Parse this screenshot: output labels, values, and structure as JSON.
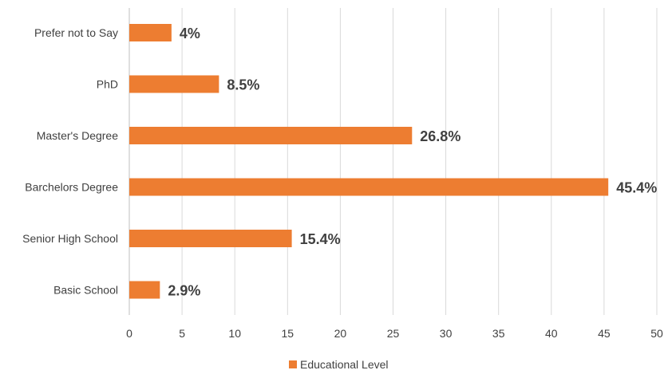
{
  "chart_data": {
    "type": "bar",
    "orientation": "horizontal",
    "categories": [
      "Prefer not to Say",
      "PhD",
      "Master's Degree",
      "Barchelors Degree",
      "Senior High School",
      "Basic School"
    ],
    "series": [
      {
        "name": "Educational Level",
        "values": [
          4,
          8.5,
          26.8,
          45.4,
          15.4,
          2.9
        ],
        "labels": [
          "4%",
          "8.5%",
          "26.8%",
          "45.4%",
          "15.4%",
          "2.9%"
        ]
      }
    ],
    "xlim": [
      0,
      50
    ],
    "xticks": [
      "0",
      "5",
      "10",
      "15",
      "20",
      "25",
      "30",
      "35",
      "40",
      "45",
      "50"
    ],
    "title": "",
    "xlabel": "",
    "ylabel": "",
    "grid": "vertical",
    "legend": "bottom-center",
    "colors": {
      "bar": "#ed7d31",
      "text": "#404040",
      "grid": "#d9d9d9"
    }
  }
}
